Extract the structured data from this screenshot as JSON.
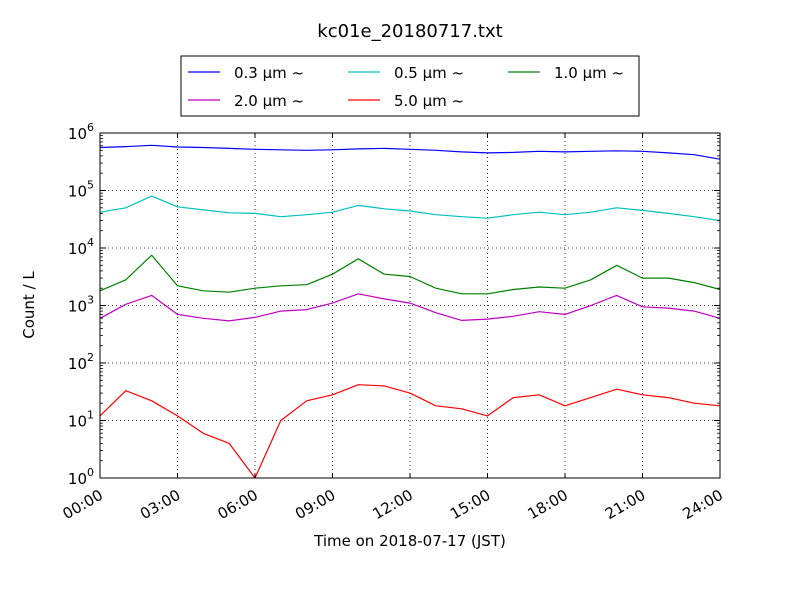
{
  "chart_data": {
    "type": "line",
    "title": "kc01e_20180717.txt",
    "xlabel": "Time on 2018-07-17 (JST)",
    "ylabel": "Count / L",
    "yscale": "log",
    "ylim": [
      1,
      1000000
    ],
    "xlim": [
      "00:00",
      "24:00"
    ],
    "x_ticks": [
      "00:00",
      "03:00",
      "06:00",
      "09:00",
      "12:00",
      "15:00",
      "18:00",
      "21:00",
      "24:00"
    ],
    "y_ticks": [
      {
        "base": "10",
        "exp": "0"
      },
      {
        "base": "10",
        "exp": "1"
      },
      {
        "base": "10",
        "exp": "2"
      },
      {
        "base": "10",
        "exp": "3"
      },
      {
        "base": "10",
        "exp": "4"
      },
      {
        "base": "10",
        "exp": "5"
      },
      {
        "base": "10",
        "exp": "6"
      }
    ],
    "grid": true,
    "legend_position": "top-center, above plot",
    "x_hours": [
      0,
      1,
      2,
      3,
      4,
      5,
      6,
      7,
      8,
      9,
      10,
      11,
      12,
      13,
      14,
      15,
      16,
      17,
      18,
      19,
      20,
      21,
      22,
      23,
      24
    ],
    "series": [
      {
        "name": "0.3 μm ~",
        "color": "#0000ff",
        "values": [
          560000,
          580000,
          610000,
          570000,
          560000,
          540000,
          520000,
          510000,
          500000,
          510000,
          530000,
          540000,
          520000,
          500000,
          470000,
          450000,
          460000,
          480000,
          470000,
          480000,
          490000,
          480000,
          450000,
          420000,
          350000
        ]
      },
      {
        "name": "0.5 μm ~",
        "color": "#00bfbf",
        "values": [
          42000,
          50000,
          80000,
          52000,
          46000,
          41000,
          40000,
          35000,
          38000,
          42000,
          55000,
          48000,
          44000,
          38000,
          35000,
          33000,
          38000,
          42000,
          38000,
          42000,
          50000,
          45000,
          40000,
          35000,
          30000
        ]
      },
      {
        "name": "1.0 μm ~",
        "color": "#008000",
        "values": [
          1800,
          2800,
          7500,
          2200,
          1800,
          1700,
          2000,
          2200,
          2300,
          3500,
          6500,
          3500,
          3200,
          2000,
          1600,
          1600,
          1900,
          2100,
          2000,
          2800,
          5000,
          3000,
          3000,
          2500,
          1900
        ]
      },
      {
        "name": "2.0 μm ~",
        "color": "#bf00bf",
        "values": [
          600,
          1050,
          1500,
          700,
          600,
          540,
          620,
          800,
          850,
          1100,
          1600,
          1300,
          1100,
          750,
          550,
          580,
          650,
          780,
          700,
          1000,
          1500,
          950,
          900,
          800,
          600
        ]
      },
      {
        "name": "5.0 μm ~",
        "color": "#ff0000",
        "values": [
          12,
          33,
          22,
          12,
          6,
          4,
          1,
          10,
          22,
          28,
          42,
          40,
          30,
          18,
          16,
          12,
          25,
          28,
          18,
          25,
          35,
          28,
          25,
          20,
          18
        ]
      }
    ]
  }
}
